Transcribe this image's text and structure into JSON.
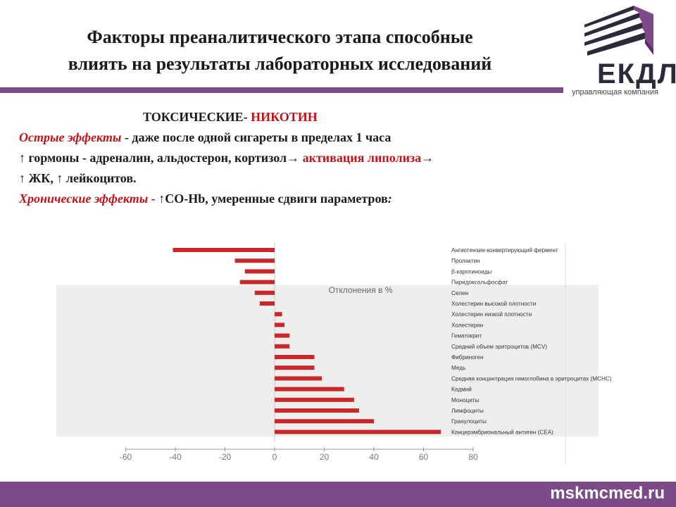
{
  "title": {
    "line1": "Факторы преаналитического этапа способные",
    "line2": "влиять на результаты лабораторных исследований"
  },
  "logo": {
    "letters": "ЕКДЛ",
    "caption": "управляющая компания"
  },
  "text": {
    "heading_prefix": "ТОКСИЧЕСКИЕ-",
    "heading_red": "НИКОТИН",
    "acute_label": "Острые эффекты",
    "acute_rest": " - даже после одной сигареты в пределах 1 часа",
    "hormones": "↑ гормоны - адреналин, альдостерон, кортизол→ ",
    "lipolysis": "активация липолиза",
    "arrow": "→",
    "fatty": "↑ ЖК, ↑ лейкоцитов.",
    "chronic_label": "Хронические эффекты",
    "chronic_dash": " - ",
    "chronic_rest": "↑CO-Hb, умеренные сдвиги параметров",
    "chronic_colon": ":"
  },
  "colors": {
    "accent": "#7b4a87",
    "red": "#c0141b",
    "bar": "#c8282a"
  },
  "chart_data": {
    "type": "bar",
    "orientation": "horizontal",
    "title": "Отклонения в %",
    "categories": [
      "Ангиотензин-конвертирующий фермент",
      "Пролактин",
      "β-каротиноиды",
      "Пиридоксальфосфат",
      "Селен",
      "Холестерин высокой плотности",
      "Холестерин низкой плотности",
      "Холестерин",
      "Гематокрит",
      "Средний объем эритроцитов (MCV)",
      "Фибриноген",
      "Медь",
      "Средняя концентрация гемоглобина в эритроцитах (MCHC)",
      "Кадмий",
      "Моноциты",
      "Лимфоциты",
      "Гранулоциты",
      "Канцерэмбриональный антиген (CEA)"
    ],
    "values": [
      -41,
      -16,
      -12,
      -14,
      -8,
      -6,
      3,
      4,
      6,
      6,
      16,
      16,
      19,
      28,
      32,
      34,
      40,
      67
    ],
    "xticks": [
      "-60",
      "-40",
      "-20",
      "0",
      "20",
      "40",
      "60",
      "80"
    ],
    "xlim": [
      -60,
      80
    ]
  },
  "footer": {
    "site": "mskmcmed.ru"
  }
}
